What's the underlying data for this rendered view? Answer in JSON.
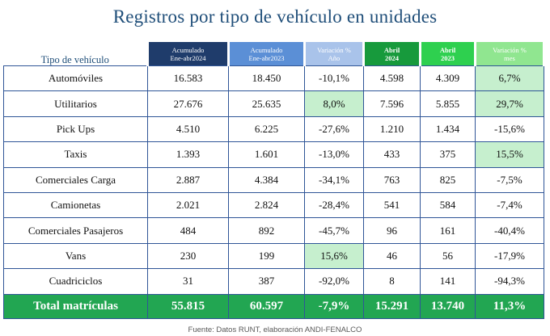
{
  "title": "Registros por tipo de vehículo en unidades",
  "columns": {
    "label": "Tipo de vehículo",
    "c1a": "Acumulado",
    "c1b": "Ene-abr2024",
    "c2a": "Acumulado",
    "c2b": "Ene-abr2023",
    "c3a": "Variación %",
    "c3b": "Año",
    "c4a": "Abril",
    "c4b": "2024",
    "c5a": "Abril",
    "c5b": "2023",
    "c6a": "Variación %",
    "c6b": "mes"
  },
  "rows": [
    {
      "type": "Automóviles",
      "acum2024": "16.583",
      "acum2023": "18.450",
      "var_anio": "-10,1%",
      "abril2024": "4.598",
      "abril2023": "4.309",
      "var_mes": "6,7%"
    },
    {
      "type": "Utilitarios",
      "acum2024": "27.676",
      "acum2023": "25.635",
      "var_anio": "8,0%",
      "abril2024": "7.596",
      "abril2023": "5.855",
      "var_mes": "29,7%"
    },
    {
      "type": "Pick Ups",
      "acum2024": "4.510",
      "acum2023": "6.225",
      "var_anio": "-27,6%",
      "abril2024": "1.210",
      "abril2023": "1.434",
      "var_mes": "-15,6%"
    },
    {
      "type": "Taxis",
      "acum2024": "1.393",
      "acum2023": "1.601",
      "var_anio": "-13,0%",
      "abril2024": "433",
      "abril2023": "375",
      "var_mes": "15,5%"
    },
    {
      "type": "Comerciales Carga",
      "acum2024": "2.887",
      "acum2023": "4.384",
      "var_anio": "-34,1%",
      "abril2024": "763",
      "abril2023": "825",
      "var_mes": "-7,5%"
    },
    {
      "type": "Camionetas",
      "acum2024": "2.021",
      "acum2023": "2.824",
      "var_anio": "-28,4%",
      "abril2024": "541",
      "abril2023": "584",
      "var_mes": "-7,4%"
    },
    {
      "type": "Comerciales Pasajeros",
      "acum2024": "484",
      "acum2023": "892",
      "var_anio": "-45,7%",
      "abril2024": "96",
      "abril2023": "161",
      "var_mes": "-40,4%"
    },
    {
      "type": "Vans",
      "acum2024": "230",
      "acum2023": "199",
      "var_anio": "15,6%",
      "abril2024": "46",
      "abril2023": "56",
      "var_mes": "-17,9%"
    },
    {
      "type": "Cuadriciclos",
      "acum2024": "31",
      "acum2023": "387",
      "var_anio": "-92,0%",
      "abril2024": "8",
      "abril2023": "141",
      "var_mes": "-94,3%"
    }
  ],
  "total": {
    "type": "Total matrículas",
    "acum2024": "55.815",
    "acum2023": "60.597",
    "var_anio": "-7,9%",
    "abril2024": "15.291",
    "abril2023": "13.740",
    "var_mes": "11,3%"
  },
  "source": "Fuente: Datos RUNT, elaboración ANDI-FENALCO",
  "colors": {
    "title": "#1f4e79",
    "highlight": "#c6efce",
    "total": "#22a652",
    "border": "#2f5597"
  }
}
